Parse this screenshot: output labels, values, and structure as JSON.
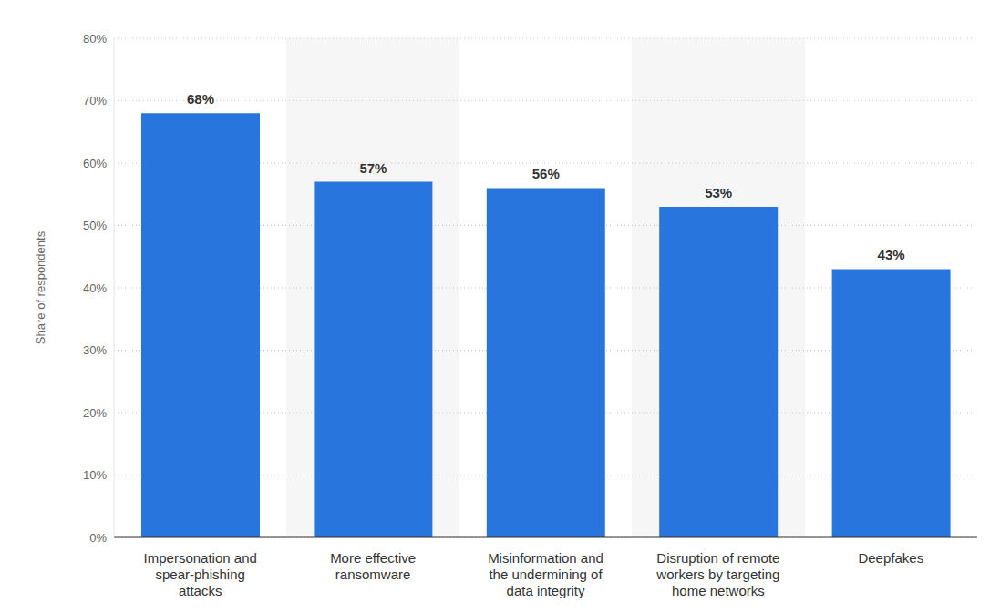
{
  "chart_data": {
    "type": "bar",
    "y_label": "Share of respondents",
    "categories": [
      "Impersonation and spear-phishing attacks",
      "More effective ransomware",
      "Misinformation and the undermining of data integrity",
      "Disruption of remote workers by targeting home networks",
      "Deepfakes"
    ],
    "values": [
      68,
      57,
      56,
      53,
      43
    ],
    "value_labels": [
      "68%",
      "57%",
      "56%",
      "53%",
      "43%"
    ],
    "data_labels": true,
    "color": "#2876dd",
    "ylim": [
      0,
      80
    ],
    "yticks": [
      {
        "value": 0,
        "label": "0%"
      },
      {
        "value": 10,
        "label": "10%"
      },
      {
        "value": 20,
        "label": "20%"
      },
      {
        "value": 30,
        "label": "30%"
      },
      {
        "value": 40,
        "label": "40%"
      },
      {
        "value": 50,
        "label": "50%"
      },
      {
        "value": 60,
        "label": "60%"
      },
      {
        "value": 70,
        "label": "70%"
      },
      {
        "value": 80,
        "label": "80%"
      }
    ],
    "grid": true
  }
}
